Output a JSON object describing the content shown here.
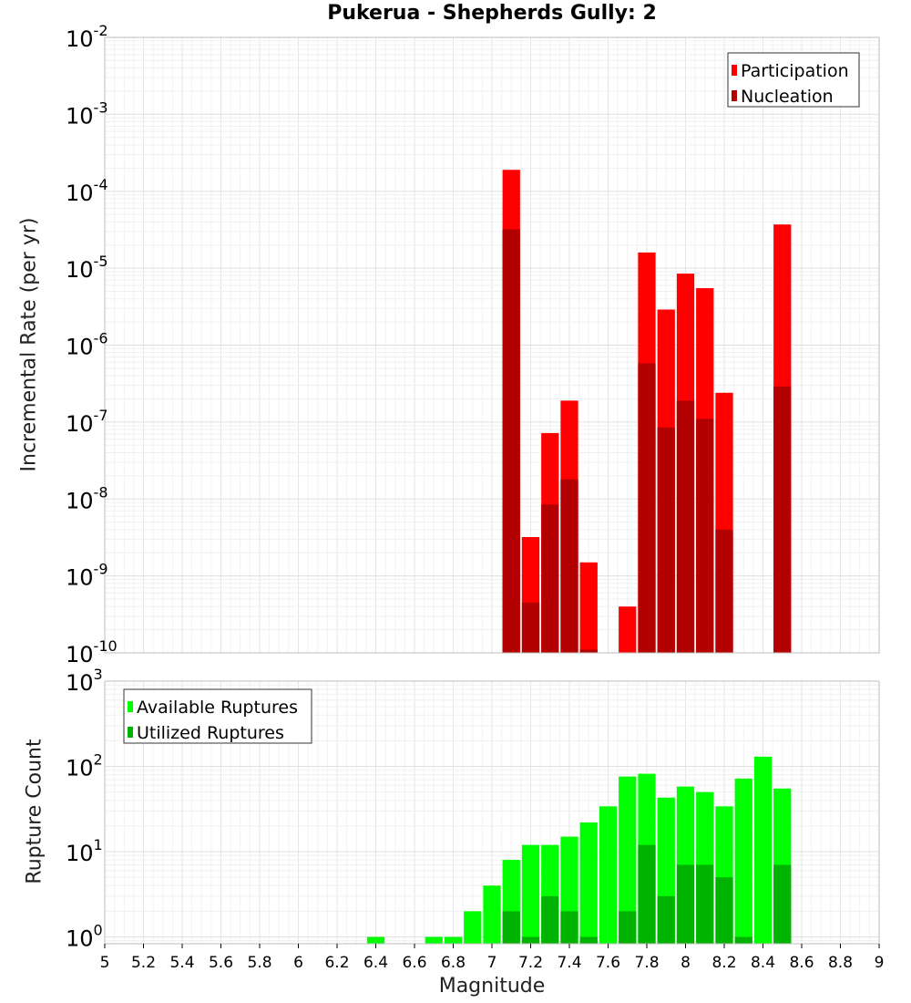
{
  "title": "Pukerua - Shepherds Gully: 2",
  "chart_data": [
    {
      "type": "bar",
      "ylabel": "Incremental Rate (per yr)",
      "yscale": "log",
      "ylim_exp": [
        -10,
        -2
      ],
      "xlim": [
        5,
        9
      ],
      "bar_width": 0.1,
      "grid": true,
      "legend_placement": "top-right",
      "series": [
        {
          "name": "Participation",
          "color": "#ff0000",
          "x": [
            7.1,
            7.2,
            7.3,
            7.4,
            7.5,
            7.7,
            7.8,
            7.9,
            8.0,
            8.1,
            8.2,
            8.5
          ],
          "values": [
            0.00019,
            3.2e-09,
            7.2e-08,
            1.9e-07,
            1.5e-09,
            4e-10,
            1.6e-05,
            2.9e-06,
            8.5e-06,
            5.5e-06,
            2.4e-07,
            3.7e-05
          ]
        },
        {
          "name": "Nucleation",
          "color": "#b30000",
          "x": [
            7.1,
            7.2,
            7.3,
            7.4,
            7.5,
            7.8,
            7.9,
            8.0,
            8.1,
            8.2,
            8.5
          ],
          "values": [
            3.2e-05,
            4.5e-10,
            8.5e-09,
            1.8e-08,
            1.1e-10,
            5.8e-07,
            8.5e-08,
            1.9e-07,
            1.1e-07,
            4e-09,
            2.9e-07
          ]
        }
      ]
    },
    {
      "type": "bar",
      "ylabel": "Rupture Count",
      "yscale": "log",
      "ylim_exp": [
        -0.08,
        3
      ],
      "xlim": [
        5,
        9
      ],
      "bar_width": 0.1,
      "grid": true,
      "legend_placement": "top-left",
      "series": [
        {
          "name": "Available Ruptures",
          "color": "#00ff00",
          "x": [
            6.4,
            6.7,
            6.8,
            6.9,
            7.0,
            7.1,
            7.2,
            7.3,
            7.4,
            7.5,
            7.6,
            7.7,
            7.8,
            7.9,
            8.0,
            8.1,
            8.2,
            8.3,
            8.4,
            8.5
          ],
          "values": [
            1,
            1,
            1,
            2,
            4,
            8,
            12,
            12,
            15,
            22,
            34,
            76,
            82,
            43,
            58,
            50,
            34,
            72,
            130,
            55
          ]
        },
        {
          "name": "Utilized Ruptures",
          "color": "#00b300",
          "x": [
            7.1,
            7.2,
            7.3,
            7.4,
            7.5,
            7.7,
            7.8,
            7.9,
            8.0,
            8.1,
            8.2,
            8.3,
            8.5
          ],
          "values": [
            2,
            1,
            3,
            2,
            1,
            2,
            12,
            3,
            7,
            7,
            5,
            1,
            7
          ]
        }
      ]
    }
  ],
  "xaxis": {
    "label": "Magnitude",
    "ticks": [
      5,
      5.2,
      5.4,
      5.6,
      5.8,
      6,
      6.2,
      6.4,
      6.6,
      6.8,
      7,
      7.2,
      7.4,
      7.6,
      7.8,
      8,
      8.2,
      8.4,
      8.6,
      8.8,
      9
    ],
    "tick_labels": [
      "5",
      "5.2",
      "5.4",
      "5.6",
      "5.8",
      "6",
      "6.2",
      "6.4",
      "6.6",
      "6.8",
      "7",
      "7.2",
      "7.4",
      "7.6",
      "7.8",
      "8",
      "8.2",
      "8.4",
      "8.6",
      "8.8",
      "9"
    ]
  },
  "yaxis_top": {
    "tick_exponents": [
      "-2",
      "-3",
      "-4",
      "-5",
      "-6",
      "-7",
      "-8",
      "-9",
      "-10"
    ],
    "tick_base": "10"
  },
  "yaxis_bottom": {
    "tick_exponents": [
      "3",
      "2",
      "1",
      "0"
    ],
    "tick_base": "10"
  }
}
